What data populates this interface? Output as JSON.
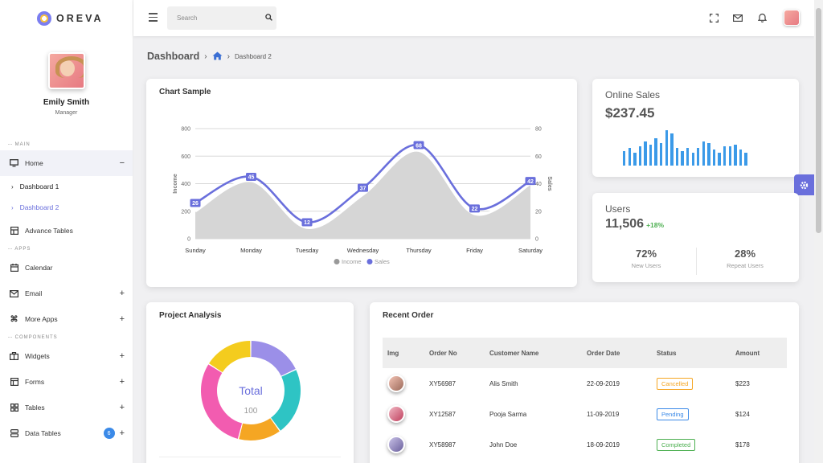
{
  "brand": {
    "name": "OREVA"
  },
  "profile": {
    "name": "Emily Smith",
    "role": "Manager"
  },
  "sidebar": {
    "sections": [
      "-- MAIN",
      "-- APPS",
      "-- COMPONENTS"
    ],
    "home": {
      "label": "Home",
      "toggle": "−"
    },
    "subitems": [
      {
        "label": "Dashboard 1"
      },
      {
        "label": "Dashboard 2"
      }
    ],
    "advance_tables": "Advance Tables",
    "calendar": "Calendar",
    "email": "Email",
    "more_apps": "More Apps",
    "widgets": "Widgets",
    "forms": "Forms",
    "tables": "Tables",
    "data_tables": "Data Tables",
    "data_tables_badge": "6",
    "plus": "+"
  },
  "header": {
    "search_placeholder": "Search"
  },
  "breadcrumb": {
    "title": "Dashboard",
    "current": "Dashboard 2"
  },
  "chart_card": {
    "title": "Chart Sample"
  },
  "chart_data": {
    "type": "line",
    "categories": [
      "Sunday",
      "Monday",
      "Tuesday",
      "Wednesday",
      "Thursday",
      "Friday",
      "Saturday"
    ],
    "series": [
      {
        "name": "Income",
        "type": "area",
        "axis": "left",
        "values": [
          200,
          420,
          80,
          320,
          640,
          180,
          400
        ]
      },
      {
        "name": "Sales",
        "type": "line",
        "axis": "right",
        "values": [
          26,
          45,
          12,
          37,
          68,
          22,
          42
        ]
      }
    ],
    "ylabel": "Income",
    "y2label": "Sales",
    "ylim": [
      0,
      800
    ],
    "y2lim": [
      0,
      80
    ],
    "yticks": [
      "0",
      "200",
      "400",
      "600",
      "800"
    ],
    "y2ticks": [
      "0",
      "20",
      "40",
      "60",
      "80"
    ],
    "legend": "bottom",
    "grid": true,
    "colors": {
      "income": "#d6d6d6",
      "sales": "#6a6fdc"
    }
  },
  "online_sales": {
    "title": "Online Sales",
    "value": "$237.45",
    "bars": [
      18,
      22,
      16,
      24,
      30,
      26,
      34,
      28,
      44,
      40,
      22,
      18,
      22,
      16,
      22,
      30,
      28,
      20,
      16,
      24,
      24,
      26,
      20,
      16
    ],
    "color": "#3b9ae8"
  },
  "users": {
    "title": "Users",
    "value": "11,506",
    "change": "+18%",
    "stats": [
      {
        "value": "72%",
        "label": "New Users"
      },
      {
        "value": "28%",
        "label": "Repeat Users"
      }
    ]
  },
  "project_analysis": {
    "title": "Project Analysis",
    "center_label": "Total",
    "center_value": "100",
    "slices": [
      {
        "value": 18,
        "color": "#9b8fe8"
      },
      {
        "value": 22,
        "color": "#2ec4c4"
      },
      {
        "value": 14,
        "color": "#f5a623"
      },
      {
        "value": 30,
        "color": "#f25cb0"
      },
      {
        "value": 16,
        "color": "#f4cc1e"
      }
    ]
  },
  "recent_order": {
    "title": "Recent Order",
    "columns": [
      "Img",
      "Order No",
      "Customer Name",
      "Order Date",
      "Status",
      "Amount"
    ],
    "rows": [
      {
        "order_no": "XY56987",
        "customer": "Alis Smith",
        "date": "22-09-2019",
        "status": "Cancelled",
        "status_color": "#f5a623",
        "amount": "$223"
      },
      {
        "order_no": "XY12587",
        "customer": "Pooja Sarma",
        "date": "11-09-2019",
        "status": "Pending",
        "status_color": "#3b8ae8",
        "amount": "$124"
      },
      {
        "order_no": "XY58987",
        "customer": "John Doe",
        "date": "18-09-2019",
        "status": "Completed",
        "status_color": "#4caf50",
        "amount": "$178"
      }
    ]
  }
}
